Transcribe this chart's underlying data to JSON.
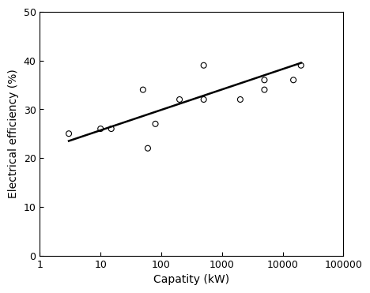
{
  "scatter_x": [
    3,
    10,
    15,
    50,
    60,
    80,
    200,
    500,
    500,
    2000,
    5000,
    5000,
    15000,
    20000
  ],
  "scatter_y": [
    25,
    26,
    26,
    34,
    22,
    27,
    32,
    32,
    39,
    32,
    36,
    34,
    36,
    39
  ],
  "line_x_start": 3,
  "line_x_end": 20000,
  "line_y_start": 23.5,
  "line_y_end": 39.5,
  "xlabel": "Capatity (kW)",
  "ylabel": "Electrical efficiency (%)",
  "xlim": [
    1,
    100000
  ],
  "ylim": [
    0,
    50
  ],
  "yticks": [
    0,
    10,
    20,
    30,
    40,
    50
  ],
  "xticks": [
    1,
    10,
    100,
    1000,
    10000,
    100000
  ],
  "xtick_labels": [
    "1",
    "10",
    "100",
    "1000",
    "10000",
    "100000"
  ],
  "background_color": "#ffffff",
  "scatter_color": "none",
  "scatter_edgecolor": "#000000",
  "line_color": "#000000",
  "marker_size": 5,
  "figsize": [
    4.74,
    3.72
  ],
  "dpi": 100,
  "xlabel_fontsize": 10,
  "ylabel_fontsize": 10,
  "tick_labelsize": 9
}
